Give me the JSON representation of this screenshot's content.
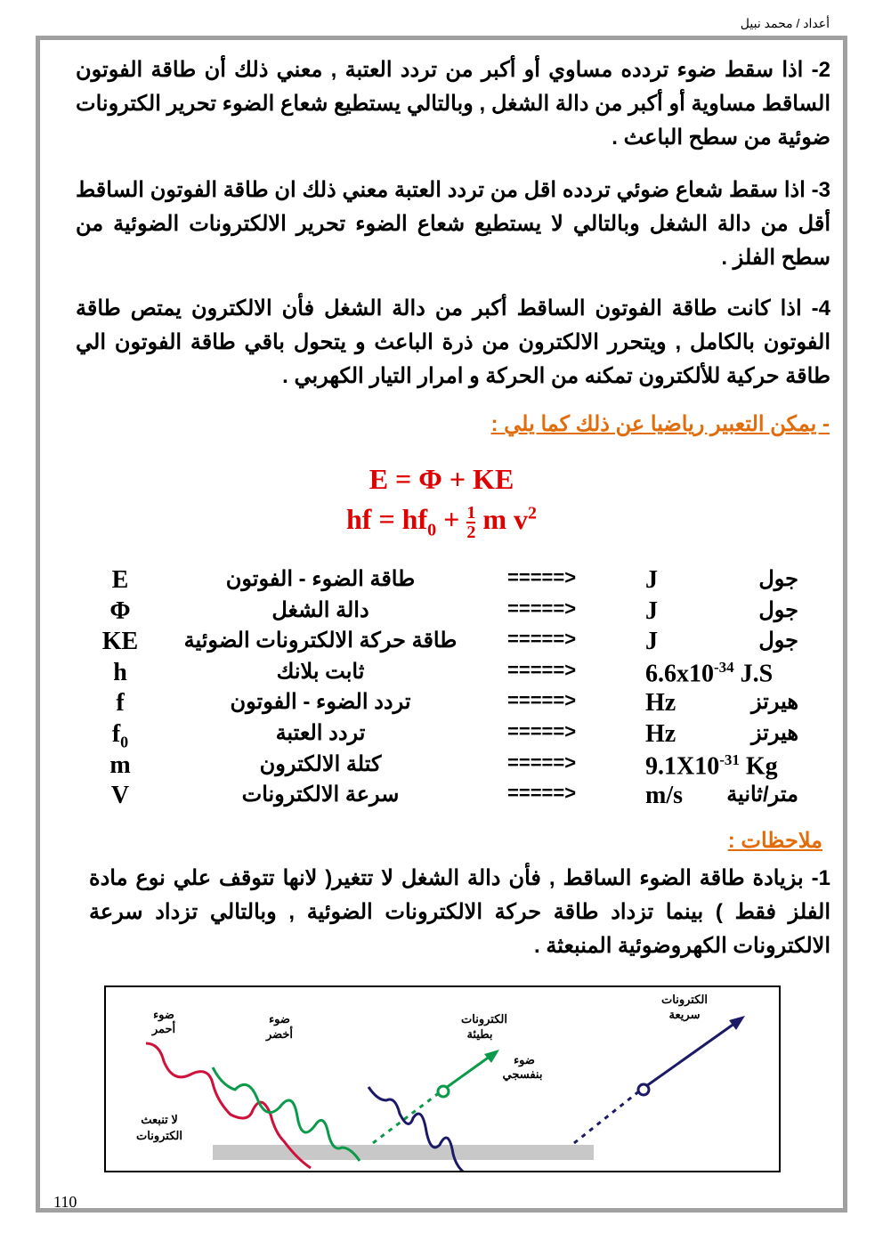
{
  "header": {
    "author": "أعداد / محمد نبيل"
  },
  "paragraphs": [
    "2- اذا سقط ضوء تردده مساوي أو أكبر من تردد العتبة , معني ذلك أن طاقة الفوتون الساقط مساوية أو أكبر من دالة الشغل , وبالتالي يستطيع شعاع الضوء تحرير الكترونات ضوئية من سطح الباعث .",
    "3- اذا سقط شعاع ضوئي تردده اقل من تردد العتبة معني ذلك ان طاقة الفوتون الساقط أقل من دالة الشغل وبالتالي لا يستطيع شعاع الضوء تحرير الالكترونات الضوئية من سطح الفلز .",
    "4- اذا كانت طاقة الفوتون الساقط أكبر من دالة الشغل فأن الالكترون يمتص طاقة الفوتون بالكامل , ويتحرر الالكترون من ذرة الباعث و يتحول باقي طاقة الفوتون الي طاقة حركية للألكترون تمكنه من الحركة و امرار التيار الكهربي ."
  ],
  "math_intro": "- يمكن التعبير رياضيا عن ذلك كما يلي :",
  "equations": {
    "eq1": "E = Φ + KE",
    "eq2_left": "hf = hf",
    "eq2_sub": "0",
    "eq2_plus": " + ",
    "frac_num": "1",
    "frac_den": "2",
    "eq2_right": " m v",
    "eq2_sup": "2"
  },
  "table": [
    {
      "symbol": "E",
      "desc": "طاقة الضوء - الفوتون",
      "arrow": "=====>",
      "unit": "J",
      "unit_ar": "جول"
    },
    {
      "symbol": "Φ",
      "desc": "دالة الشغل",
      "arrow": "=====>",
      "unit": "J",
      "unit_ar": "جول"
    },
    {
      "symbol": "KE",
      "desc": "طاقة حركة الالكترونات الضوئية",
      "arrow": "=====>",
      "unit": "J",
      "unit_ar": "جول"
    },
    {
      "symbol": "h",
      "desc": "ثابت بلانك",
      "arrow": "=====>",
      "unit": "6.6x10",
      "unit_sup": "-34",
      "unit_tail": " J.S",
      "unit_ar": ""
    },
    {
      "symbol": "f",
      "desc": "تردد الضوء - الفوتون",
      "arrow": "=====>",
      "unit": "Hz",
      "unit_ar": "هيرتز"
    },
    {
      "symbol": "f",
      "symbol_sub": "0",
      "desc": "تردد العتبة",
      "arrow": "=====>",
      "unit": "Hz",
      "unit_ar": "هيرتز"
    },
    {
      "symbol": "m",
      "desc": "كتلة الالكترون",
      "arrow": "=====>",
      "unit": "9.1X10",
      "unit_sup": "-31",
      "unit_tail": " Kg",
      "unit_ar": ""
    },
    {
      "symbol": "V",
      "desc": "سرعة الالكترونات",
      "arrow": "=====>",
      "unit": "m/s",
      "unit_ar": "متر/ثانية"
    }
  ],
  "notes_title": "ملاحظات :",
  "note1": "1- بزيادة طاقة الضوء الساقط , فأن دالة الشغل لا تتغير( لانها تتوقف علي نوع مادة الفلز فقط ) بينما تزداد طاقة حركة الالكترونات الضوئية , وبالتالي تزداد سرعة الالكترونات الكهروضوئية المنبعثة .",
  "figure": {
    "red_light": [
      "ضوء",
      "أحمر"
    ],
    "no_emission": [
      "لا تنبعث",
      "الكترونات"
    ],
    "green_light": [
      "ضوء",
      "أخضر"
    ],
    "slow_electrons": [
      "الكترونات",
      "بطيئة"
    ],
    "violet_light": [
      "ضوء",
      "بنفسجي"
    ],
    "fast_electrons": [
      "الكترونات",
      "سريعة"
    ],
    "colors": {
      "red": "#d0103a",
      "green": "#0a9a4a",
      "violet": "#1c1a66",
      "metal": "#c8c8c8"
    }
  },
  "page_number": "110"
}
